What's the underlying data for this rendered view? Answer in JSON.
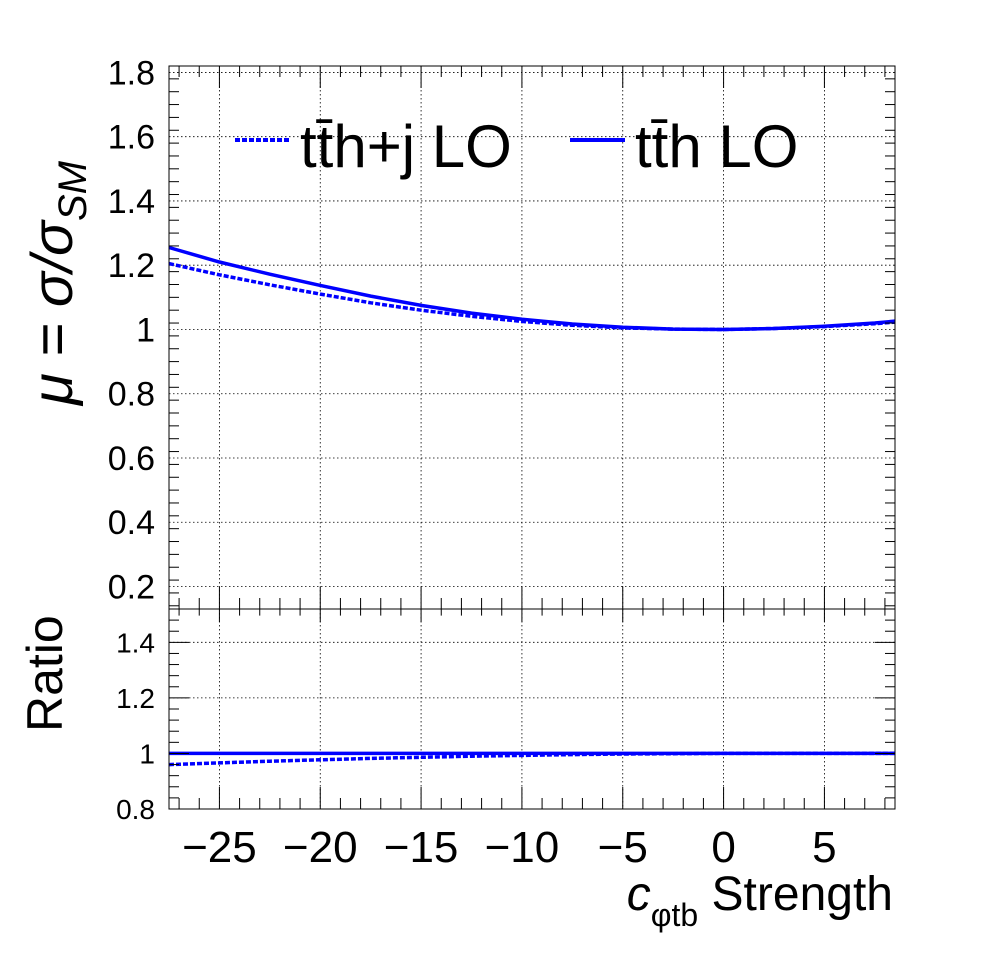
{
  "chart_data": [
    {
      "panel": "main",
      "type": "line",
      "ylabel_main": "μ = σ/σ",
      "ylabel_sub": "SM",
      "xlim": [
        -27.5,
        8.5
      ],
      "ylim": [
        0.13,
        1.82
      ],
      "grid": true,
      "legend_position": "top",
      "yticks": [
        0.2,
        0.4,
        0.6,
        0.8,
        1.0,
        1.2,
        1.4,
        1.6,
        1.8
      ],
      "ytick_labels": [
        "0.2",
        "0.4",
        "0.6",
        "0.8",
        "1",
        "1.2",
        "1.4",
        "1.6",
        "1.8"
      ],
      "series": [
        {
          "name": "tt̄h+j LO",
          "style": "dashed",
          "color": "#0000ff",
          "x": [
            -27.5,
            -25,
            -22.5,
            -20,
            -17.5,
            -15,
            -12.5,
            -10,
            -7.5,
            -5,
            -2.5,
            0,
            2.5,
            5,
            7.5,
            8.5
          ],
          "y": [
            1.205,
            1.17,
            1.139,
            1.11,
            1.083,
            1.06,
            1.041,
            1.025,
            1.013,
            1.005,
            1.001,
            1.0,
            1.003,
            1.009,
            1.018,
            1.023
          ]
        },
        {
          "name": "tt̄h LO",
          "style": "solid",
          "color": "#0000ff",
          "x": [
            -27.5,
            -25,
            -22.5,
            -20,
            -17.5,
            -15,
            -12.5,
            -10,
            -7.5,
            -5,
            -2.5,
            0,
            2.5,
            5,
            7.5,
            8.5
          ],
          "y": [
            1.255,
            1.21,
            1.172,
            1.137,
            1.104,
            1.075,
            1.051,
            1.032,
            1.017,
            1.007,
            1.001,
            1.0,
            1.003,
            1.01,
            1.02,
            1.026
          ]
        }
      ]
    },
    {
      "panel": "ratio",
      "type": "line",
      "ylabel": "Ratio",
      "xlabel_main": "c",
      "xlabel_sub": "φtb",
      "xlabel_tail": " Strength",
      "xlim": [
        -27.5,
        8.5
      ],
      "ylim": [
        0.8,
        1.52
      ],
      "grid": true,
      "xticks": [
        -25,
        -20,
        -15,
        -10,
        -5,
        0,
        5
      ],
      "xtick_labels": [
        "−25",
        "−20",
        "−15",
        "−10",
        "−5",
        "0",
        "5"
      ],
      "yticks": [
        0.8,
        1.0,
        1.2,
        1.4
      ],
      "ytick_labels": [
        "0.8",
        "1",
        "1.2",
        "1.4"
      ],
      "series": [
        {
          "name": "tt̄h+j LO",
          "style": "dashed",
          "color": "#0000ff",
          "x": [
            -27.5,
            -25,
            -22.5,
            -20,
            -17.5,
            -15,
            -12.5,
            -10,
            -7.5,
            -5,
            -2.5,
            0,
            2.5,
            5,
            7.5,
            8.5
          ],
          "y": [
            0.96,
            0.966,
            0.972,
            0.977,
            0.982,
            0.986,
            0.99,
            0.993,
            0.996,
            0.998,
            0.999,
            1.0,
            1.0,
            1.0,
            1.0,
            1.0
          ]
        },
        {
          "name": "tt̄h LO",
          "style": "solid",
          "color": "#0000ff",
          "x": [
            -27.5,
            8.5
          ],
          "y": [
            1.0,
            1.0
          ]
        }
      ]
    }
  ]
}
